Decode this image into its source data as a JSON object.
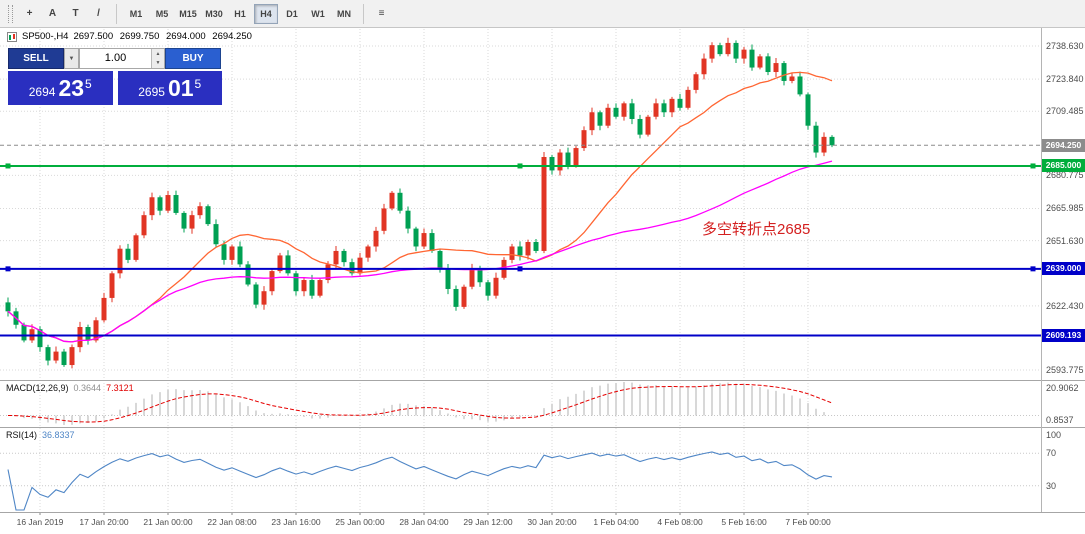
{
  "colors": {
    "bull": "#e13524",
    "bear": "#00a053",
    "ma_fast": "#ff6633",
    "ma_slow": "#ff00ff",
    "macd_hist": "#b2b2b2",
    "macd_signal": "#e60000",
    "rsi_line": "#4f86c6",
    "grid": "#d9d9d9",
    "level_green": "#00ae3c",
    "level_blue": "#0000c8",
    "current_badge": "#8c8c8c",
    "annotation": "#d42020"
  },
  "toolbar": {
    "tools": [
      {
        "name": "crosshair",
        "glyph": "+"
      },
      {
        "name": "label",
        "glyph": "A"
      },
      {
        "name": "text",
        "glyph": "T"
      },
      {
        "name": "trendline",
        "glyph": "/"
      }
    ],
    "indicators_glyph": "≡",
    "timeframes": [
      "M1",
      "M5",
      "M15",
      "M30",
      "H1",
      "H4",
      "D1",
      "W1",
      "MN"
    ],
    "active_timeframe": "H4"
  },
  "chart": {
    "title": "SP500-,H4",
    "ohlc": {
      "o": "2697.500",
      "h": "2699.750",
      "l": "2694.000",
      "c": "2694.250"
    }
  },
  "trade_panel": {
    "sell_label": "SELL",
    "buy_label": "BUY",
    "volume": "1.00",
    "dropdown_glyph": "▼",
    "spin_up": "▲",
    "spin_down": "▼",
    "sell_price": {
      "figure": "2694",
      "big": "23",
      "pip": "5"
    },
    "buy_price": {
      "figure": "2695",
      "big": "01",
      "pip": "5"
    }
  },
  "annotation": {
    "text": "多空转折点2685"
  },
  "price_scale": {
    "ticks": [
      2738.63,
      2723.84,
      2709.485,
      2680.775,
      2665.985,
      2651.63,
      2622.43,
      2593.775
    ],
    "levels": [
      {
        "price": 2694.25,
        "label": "2694.250",
        "style": "current",
        "color": "#8c8c8c",
        "handles": false
      },
      {
        "price": 2685.0,
        "label": "2685.000",
        "style": "solid",
        "color": "#00ae3c",
        "handles": true
      },
      {
        "price": 2639.0,
        "label": "2639.000",
        "style": "solid",
        "color": "#0000c8",
        "handles": true
      },
      {
        "price": 2609.193,
        "label": "2609.193",
        "style": "solid",
        "color": "#0000c8",
        "handles": false
      }
    ]
  },
  "macd": {
    "name": "MACD(12,26,9)",
    "params": [
      12,
      26,
      9
    ],
    "value_main": "0.3644",
    "value_signal": "7.3121",
    "scale": [
      "20.9062",
      "0.8537"
    ]
  },
  "rsi": {
    "name": "RSI(14)",
    "params": [
      14
    ],
    "value": "36.8337",
    "levels": [
      70,
      30
    ],
    "scale": [
      {
        "label": "100",
        "value": 100
      },
      {
        "label": "70",
        "value": 70
      },
      {
        "label": "30",
        "value": 30
      }
    ]
  },
  "time_axis": {
    "labels": [
      "16 Jan 2019",
      "17 Jan 20:00",
      "21 Jan 00:00",
      "22 Jan 08:00",
      "23 Jan 16:00",
      "25 Jan 00:00",
      "28 Jan 04:00",
      "29 Jan 12:00",
      "30 Jan 20:00",
      "1 Feb 04:00",
      "4 Feb 08:00",
      "5 Feb 16:00",
      "7 Feb 00:00"
    ],
    "start_index": 4,
    "every": 8
  },
  "chart_data": {
    "type": "candlestick",
    "symbol": "SP500-",
    "timeframe": "H4",
    "title": "SP500-,H4 2697.500 2699.750 2694.000 2694.250",
    "ylim": [
      2586,
      2747
    ],
    "first_open": 2624,
    "closes": [
      2620,
      2614,
      2607,
      2612,
      2604,
      2598,
      2602,
      2596,
      2604,
      2613,
      2607,
      2616,
      2626,
      2637,
      2648,
      2643,
      2654,
      2663,
      2671,
      2665,
      2672,
      2664,
      2657,
      2663,
      2667,
      2659,
      2650,
      2643,
      2649,
      2641,
      2632,
      2623,
      2629,
      2638,
      2645,
      2637,
      2629,
      2634,
      2627,
      2634,
      2641,
      2647,
      2642,
      2637,
      2644,
      2649,
      2656,
      2666,
      2673,
      2665,
      2657,
      2649,
      2655,
      2647,
      2639,
      2630,
      2622,
      2631,
      2639,
      2633,
      2627,
      2635,
      2643,
      2649,
      2645,
      2651,
      2647,
      2689,
      2683,
      2691,
      2685,
      2693,
      2701,
      2709,
      2703,
      2711,
      2707,
      2713,
      2706,
      2699,
      2707,
      2713,
      2709,
      2715,
      2711,
      2719,
      2726,
      2733,
      2739,
      2735,
      2740,
      2733,
      2737,
      2729,
      2734,
      2727,
      2731,
      2723,
      2725,
      2717,
      2703,
      2691,
      2698,
      2694.25
    ],
    "ma_fast_period": 18,
    "ma_slow_period": 60,
    "indicators": [
      {
        "name": "MACD",
        "params": [
          12,
          26,
          9
        ],
        "last_main": 0.3644,
        "last_signal": 7.3121
      },
      {
        "name": "RSI",
        "params": [
          14
        ],
        "last": 36.8337
      }
    ],
    "horizontal_levels": [
      2694.25,
      2685.0,
      2639.0,
      2609.193
    ]
  }
}
